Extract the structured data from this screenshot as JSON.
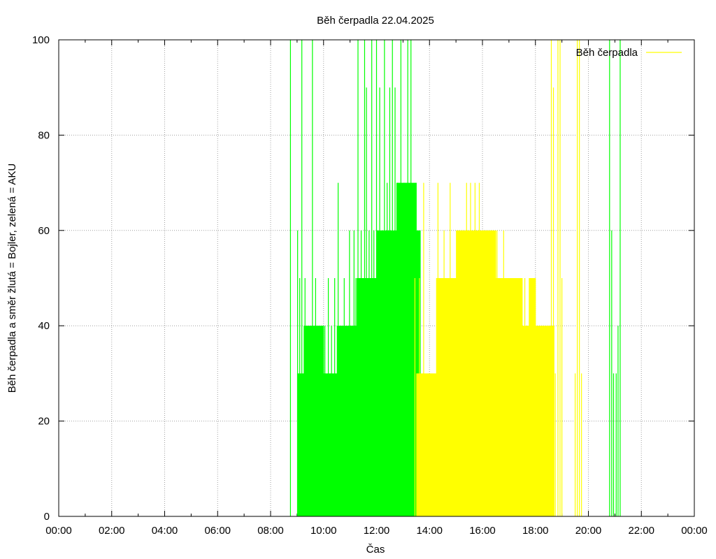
{
  "chart_data": {
    "type": "bar",
    "title": "Běh čerpadla 22.04.2025",
    "xlabel": "Čas",
    "ylabel": "Běh čerpadla a směr žlutá = Bojler, zelená = AKU",
    "x_unit": "hours",
    "xlim": [
      0,
      24
    ],
    "ylim": [
      0,
      100
    ],
    "x_ticks": [
      {
        "value": 0,
        "label": "00:00"
      },
      {
        "value": 2,
        "label": "02:00"
      },
      {
        "value": 4,
        "label": "04:00"
      },
      {
        "value": 6,
        "label": "06:00"
      },
      {
        "value": 8,
        "label": "08:00"
      },
      {
        "value": 10,
        "label": "10:00"
      },
      {
        "value": 12,
        "label": "12:00"
      },
      {
        "value": 14,
        "label": "14:00"
      },
      {
        "value": 16,
        "label": "16:00"
      },
      {
        "value": 18,
        "label": "18:00"
      },
      {
        "value": 20,
        "label": "20:00"
      },
      {
        "value": 22,
        "label": "22:00"
      },
      {
        "value": 24,
        "label": "00:00"
      }
    ],
    "y_ticks": [
      {
        "value": 0,
        "label": "0"
      },
      {
        "value": 20,
        "label": "20"
      },
      {
        "value": 40,
        "label": "40"
      },
      {
        "value": 60,
        "label": "60"
      },
      {
        "value": 80,
        "label": "80"
      },
      {
        "value": 100,
        "label": "100"
      }
    ],
    "grid": true,
    "legend": {
      "position": "top-right",
      "entries": [
        {
          "label": "Běh čerpadla",
          "color": "#ffff00"
        }
      ]
    },
    "colors": {
      "aku": "#00ff00",
      "bojler": "#ffff00"
    },
    "series": [
      {
        "direction": "aku",
        "color": "#00ff00",
        "fill": [
          [
            9.0,
            30
          ],
          [
            9.25,
            40
          ],
          [
            9.5,
            40
          ],
          [
            9.75,
            40
          ],
          [
            10.0,
            30
          ],
          [
            10.25,
            30
          ],
          [
            10.5,
            40
          ],
          [
            10.75,
            40
          ],
          [
            11.0,
            40
          ],
          [
            11.25,
            50
          ],
          [
            11.5,
            50
          ],
          [
            11.75,
            50
          ],
          [
            12.0,
            60
          ],
          [
            12.25,
            60
          ],
          [
            12.5,
            60
          ],
          [
            12.75,
            70
          ],
          [
            13.0,
            70
          ],
          [
            13.25,
            70
          ],
          [
            13.4,
            60
          ]
        ],
        "spikes": [
          [
            8.75,
            100
          ],
          [
            9.02,
            60
          ],
          [
            9.1,
            50
          ],
          [
            9.18,
            100
          ],
          [
            9.3,
            50
          ],
          [
            9.4,
            40
          ],
          [
            9.58,
            100
          ],
          [
            9.7,
            50
          ],
          [
            9.82,
            40
          ],
          [
            9.92,
            40
          ],
          [
            10.05,
            40
          ],
          [
            10.18,
            50
          ],
          [
            10.3,
            40
          ],
          [
            10.42,
            50
          ],
          [
            10.55,
            70
          ],
          [
            10.65,
            40
          ],
          [
            10.78,
            50
          ],
          [
            10.85,
            40
          ],
          [
            10.98,
            60
          ],
          [
            11.05,
            40
          ],
          [
            11.15,
            60
          ],
          [
            11.22,
            50
          ],
          [
            11.3,
            100
          ],
          [
            11.42,
            60
          ],
          [
            11.55,
            100
          ],
          [
            11.62,
            90
          ],
          [
            11.72,
            60
          ],
          [
            11.82,
            100
          ],
          [
            11.9,
            60
          ],
          [
            12.0,
            100
          ],
          [
            12.12,
            90
          ],
          [
            12.22,
            60
          ],
          [
            12.3,
            100
          ],
          [
            12.4,
            70
          ],
          [
            12.5,
            90
          ],
          [
            12.6,
            100
          ],
          [
            12.7,
            90
          ],
          [
            12.8,
            70
          ],
          [
            12.92,
            100
          ],
          [
            13.05,
            70
          ],
          [
            13.18,
            100
          ],
          [
            13.3,
            100
          ],
          [
            20.8,
            100
          ],
          [
            20.88,
            60
          ],
          [
            20.95,
            30
          ],
          [
            21.05,
            30
          ],
          [
            21.12,
            40
          ],
          [
            21.2,
            100
          ]
        ]
      },
      {
        "direction": "bojler",
        "color": "#ffff00",
        "fill": [
          [
            13.5,
            30
          ],
          [
            13.75,
            30
          ],
          [
            14.0,
            30
          ],
          [
            14.25,
            50
          ],
          [
            14.5,
            50
          ],
          [
            14.75,
            50
          ],
          [
            15.0,
            60
          ],
          [
            15.25,
            60
          ],
          [
            15.5,
            60
          ],
          [
            15.75,
            60
          ],
          [
            16.0,
            60
          ],
          [
            16.25,
            60
          ],
          [
            16.5,
            50
          ],
          [
            16.75,
            50
          ],
          [
            17.0,
            50
          ],
          [
            17.25,
            50
          ],
          [
            17.5,
            40
          ],
          [
            17.75,
            50
          ],
          [
            18.0,
            40
          ],
          [
            18.25,
            40
          ],
          [
            18.45,
            40
          ]
        ],
        "spikes": [
          [
            13.45,
            50
          ],
          [
            13.62,
            50
          ],
          [
            13.78,
            70
          ],
          [
            14.32,
            70
          ],
          [
            14.55,
            60
          ],
          [
            14.78,
            70
          ],
          [
            15.1,
            60
          ],
          [
            15.4,
            70
          ],
          [
            15.55,
            70
          ],
          [
            15.72,
            70
          ],
          [
            15.88,
            70
          ],
          [
            16.05,
            60
          ],
          [
            16.35,
            60
          ],
          [
            16.55,
            60
          ],
          [
            16.8,
            60
          ],
          [
            17.1,
            50
          ],
          [
            17.32,
            50
          ],
          [
            17.6,
            50
          ],
          [
            17.82,
            50
          ],
          [
            18.6,
            100
          ],
          [
            18.68,
            90
          ],
          [
            18.75,
            30
          ],
          [
            18.85,
            100
          ],
          [
            18.93,
            100
          ],
          [
            19.0,
            50
          ],
          [
            19.5,
            30
          ],
          [
            19.58,
            100
          ],
          [
            19.66,
            100
          ],
          [
            19.74,
            30
          ]
        ]
      }
    ]
  }
}
